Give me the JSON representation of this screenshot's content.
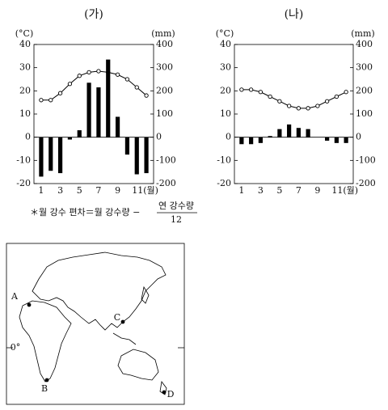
{
  "chart_data": [
    {
      "type": "combo",
      "title": "(가)",
      "ylabel": "(°C)",
      "y2label": "(mm)",
      "categories": [
        "1",
        null,
        "3",
        null,
        "5",
        null,
        "7",
        null,
        "9",
        null,
        "11(월)",
        null
      ],
      "ylim": [
        -20,
        40
      ],
      "yticks": [
        -20,
        -10,
        0,
        10,
        20,
        30,
        40
      ],
      "y2lim": [
        -200,
        400
      ],
      "y2ticks": [
        -200,
        -100,
        0,
        100,
        200,
        300,
        400
      ],
      "series": [
        {
          "type": "line",
          "color": "#000000",
          "values": [
            16,
            16,
            19,
            23,
            26.5,
            28,
            28.5,
            28,
            27,
            25,
            21.5,
            18
          ]
        },
        {
          "type": "bar",
          "axis": "y2",
          "color": "#000000",
          "values": [
            -170,
            -145,
            -155,
            -10,
            30,
            235,
            215,
            335,
            88,
            -75,
            -160,
            -155
          ]
        }
      ]
    },
    {
      "type": "combo",
      "title": "(나)",
      "ylabel": "(°C)",
      "y2label": "(mm)",
      "categories": [
        "1",
        null,
        "3",
        null,
        "5",
        null,
        "7",
        null,
        "9",
        null,
        "11(월)",
        null
      ],
      "ylim": [
        -20,
        40
      ],
      "yticks": [
        -20,
        -10,
        0,
        10,
        20,
        30,
        40
      ],
      "y2lim": [
        -200,
        400
      ],
      "y2ticks": [
        -200,
        -100,
        0,
        100,
        200,
        300,
        400
      ],
      "series": [
        {
          "type": "line",
          "color": "#000000",
          "values": [
            20.5,
            20.5,
            19.5,
            17.5,
            15.5,
            13.5,
            12.5,
            12.5,
            13.5,
            15.5,
            17.5,
            19.5
          ]
        },
        {
          "type": "bar",
          "axis": "y2",
          "color": "#000000",
          "values": [
            -30,
            -30,
            -25,
            5,
            35,
            55,
            40,
            35,
            0,
            -15,
            -25,
            -25
          ]
        }
      ]
    }
  ],
  "footnote": {
    "text": "＊월 강수 편차＝월 강수량 −",
    "numerator": "연 강수량",
    "denominator": "12"
  },
  "map": {
    "labels": {
      "a": "A",
      "b": "B",
      "c": "C",
      "d": "D",
      "equator": "0°"
    }
  }
}
